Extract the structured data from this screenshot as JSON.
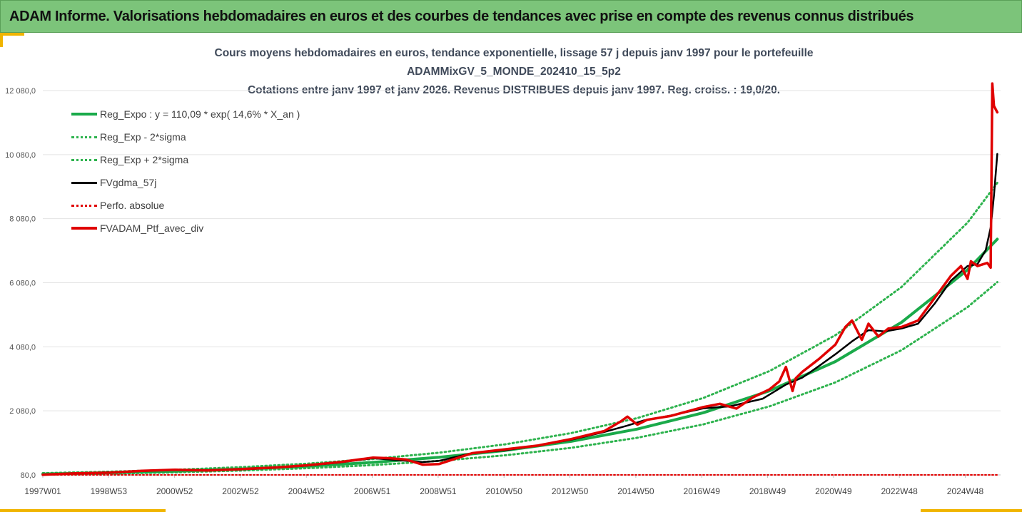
{
  "banner": {
    "title": "ADAM Informe. Valorisations hebdomadaires en euros et des courbes de tendances avec prise en compte des revenus connus distribués"
  },
  "chart_data": {
    "type": "line",
    "title": "Cours moyens hebdomadaires  en euros, tendance exponentielle, lissage 57 j depuis janv 1997 pour le portefeuille",
    "subtitle": "ADAMMixGV_5_MONDE_202410_15_5p2",
    "subtitle2": "Cotations entre janv 1997 et janv 2026. Revenus DISTRIBUES depuis janv 1997. Reg. croiss. : 19,0/20.",
    "xlabel": "",
    "ylabel": "",
    "x_ticks": [
      "1997W01",
      "1998W53",
      "2000W52",
      "2002W52",
      "2004W52",
      "2006W51",
      "2008W51",
      "2010W50",
      "2012W50",
      "2014W50",
      "2016W49",
      "2018W49",
      "2020W49",
      "2022W48",
      "2024W48"
    ],
    "x_range_years": [
      1997.0,
      2026.0
    ],
    "y_ticks": [
      "80,0",
      "2 080,0",
      "4 080,0",
      "6 080,0",
      "8 080,0",
      "10 080,0",
      "12 080,0"
    ],
    "ylim": [
      80,
      12080
    ],
    "grid": "horizontal",
    "legend_position": "top-left",
    "colors": {
      "reg_expo": "#1aaa4a",
      "sigma": "#2eb34e",
      "fvgdma": "#000000",
      "perfo": "#e00000",
      "fvadam": "#e00000"
    },
    "series": [
      {
        "name": "Reg_Expo : y = 110,09 * exp( 14,6% *  X_an )",
        "style": "solid-thick",
        "x": [
          1997.0,
          1999.0,
          2001.0,
          2003.0,
          2005.0,
          2007.0,
          2009.0,
          2011.0,
          2013.0,
          2015.0,
          2017.0,
          2019.0,
          2021.0,
          2023.0,
          2025.0,
          2025.9
        ],
        "values": [
          110,
          147,
          197,
          263,
          352,
          471,
          631,
          844,
          1129,
          1511,
          2022,
          2705,
          3620,
          4844,
          6483,
          7440
        ]
      },
      {
        "name": "Reg_Exp - 2*sigma",
        "style": "dotted",
        "x": [
          1997.0,
          1999.0,
          2001.0,
          2003.0,
          2005.0,
          2007.0,
          2009.0,
          2011.0,
          2013.0,
          2015.0,
          2017.0,
          2019.0,
          2021.0,
          2023.0,
          2025.0,
          2025.9
        ],
        "values": [
          90,
          120,
          161,
          216,
          289,
          387,
          518,
          693,
          926,
          1239,
          1658,
          2219,
          2969,
          3973,
          5317,
          6100
        ]
      },
      {
        "name": "Reg_Exp + 2*sigma",
        "style": "dotted",
        "x": [
          1997.0,
          1999.0,
          2001.0,
          2003.0,
          2005.0,
          2007.0,
          2009.0,
          2011.0,
          2013.0,
          2015.0,
          2017.0,
          2019.0,
          2021.0,
          2023.0,
          2025.0,
          2025.9
        ],
        "values": [
          135,
          180,
          241,
          323,
          432,
          579,
          774,
          1036,
          1386,
          1855,
          2482,
          3321,
          4444,
          5946,
          7957,
          9200
        ]
      },
      {
        "name": "FVgdma_57j",
        "style": "solid",
        "x": [
          1997.0,
          1998.0,
          1999.0,
          2000.0,
          2001.0,
          2002.0,
          2003.0,
          2004.0,
          2005.0,
          2006.0,
          2007.0,
          2007.5,
          2008.5,
          2009.0,
          2010.0,
          2011.0,
          2012.0,
          2013.0,
          2014.0,
          2014.7,
          2015.2,
          2016.0,
          2017.0,
          2017.8,
          2018.8,
          2019.5,
          2020.0,
          2020.5,
          2021.0,
          2021.5,
          2022.0,
          2022.5,
          2023.0,
          2023.5,
          2024.0,
          2024.5,
          2025.0,
          2025.3,
          2025.55,
          2025.7,
          2025.8,
          2025.9
        ],
        "values": [
          85,
          130,
          160,
          200,
          240,
          230,
          250,
          300,
          370,
          470,
          600,
          560,
          480,
          520,
          760,
          850,
          1000,
          1180,
          1420,
          1620,
          1780,
          1930,
          2160,
          2220,
          2460,
          2900,
          3120,
          3480,
          3850,
          4250,
          4600,
          4560,
          4650,
          4800,
          5420,
          6150,
          6600,
          6660,
          7100,
          7800,
          8800,
          10100
        ]
      },
      {
        "name": "Perfo. absolue",
        "style": "dotted",
        "x": [
          1997.0,
          2025.9
        ],
        "values": [
          80,
          80
        ]
      },
      {
        "name": "FVADAM_Ptf_avec_div",
        "style": "solid-thick",
        "x": [
          1997.0,
          1998.0,
          1999.0,
          2000.0,
          2001.0,
          2002.0,
          2003.0,
          2004.0,
          2005.0,
          2006.0,
          2007.0,
          2007.5,
          2008.0,
          2008.5,
          2009.0,
          2010.0,
          2011.0,
          2012.0,
          2013.0,
          2014.0,
          2014.5,
          2014.7,
          2015.0,
          2015.3,
          2016.0,
          2017.0,
          2017.5,
          2018.0,
          2018.5,
          2019.0,
          2019.3,
          2019.5,
          2019.7,
          2019.8,
          2020.0,
          2020.5,
          2021.0,
          2021.3,
          2021.5,
          2021.8,
          2022.0,
          2022.3,
          2022.6,
          2023.0,
          2023.5,
          2024.0,
          2024.5,
          2024.8,
          2025.0,
          2025.1,
          2025.3,
          2025.6,
          2025.7,
          2025.75,
          2025.8,
          2025.9
        ],
        "values": [
          85,
          130,
          150,
          210,
          240,
          220,
          260,
          310,
          380,
          480,
          620,
          600,
          560,
          400,
          420,
          760,
          880,
          1000,
          1200,
          1450,
          1750,
          1900,
          1650,
          1800,
          1920,
          2200,
          2300,
          2150,
          2500,
          2750,
          3000,
          3450,
          2700,
          3100,
          3300,
          3700,
          4150,
          4700,
          4900,
          4300,
          4800,
          4400,
          4650,
          4700,
          4900,
          5600,
          6300,
          6600,
          6200,
          6750,
          6600,
          6700,
          6550,
          12300,
          11600,
          11400
        ]
      }
    ]
  }
}
